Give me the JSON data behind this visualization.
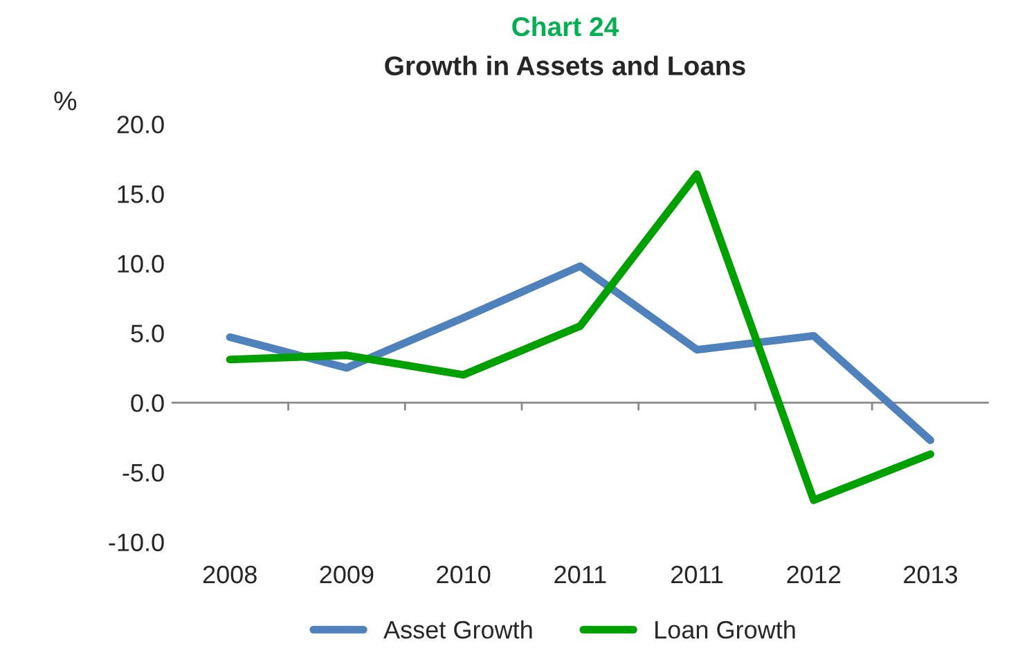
{
  "chart_data": {
    "type": "line",
    "title": "Chart 24",
    "subtitle": "Growth in Assets and Loans",
    "ylabel": "%",
    "categories": [
      "2008",
      "2009",
      "2010",
      "2011",
      "2011",
      "2012",
      "2013"
    ],
    "series": [
      {
        "name": "Asset Growth",
        "color": "#4f81bd",
        "values": [
          4.7,
          2.5,
          6.1,
          9.8,
          3.8,
          4.8,
          -2.7
        ]
      },
      {
        "name": "Loan Growth",
        "color": "#00a000",
        "values": [
          3.1,
          3.4,
          2.0,
          5.5,
          16.4,
          -7.0,
          -3.7
        ]
      }
    ],
    "ylim": [
      -10,
      20
    ],
    "yticks": [
      {
        "value": -10,
        "label": "-10.0"
      },
      {
        "value": -5,
        "label": "-5.0"
      },
      {
        "value": 0,
        "label": "0.0"
      },
      {
        "value": 5,
        "label": "5.0"
      },
      {
        "value": 10,
        "label": "10.0"
      },
      {
        "value": 15,
        "label": "15.0"
      },
      {
        "value": 20,
        "label": "20.0"
      }
    ],
    "ref_lines": [
      {
        "axis": "y",
        "value": 0,
        "color": "#888888"
      }
    ],
    "grid": false,
    "legend": "bottom",
    "marker": "none",
    "line_style": "solid"
  }
}
